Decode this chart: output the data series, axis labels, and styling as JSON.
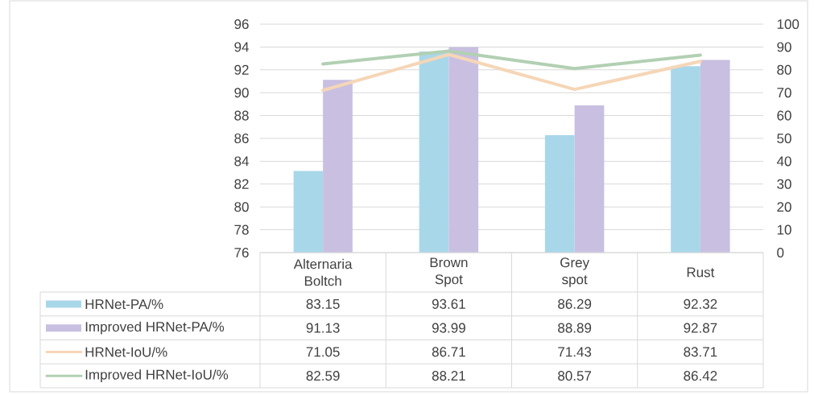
{
  "chart_data": {
    "type": "bar",
    "categories": [
      "Alternaria Boltch",
      "Brown Spot",
      "Grey spot",
      "Rust"
    ],
    "series": [
      {
        "name": "HRNet-PA/%",
        "color": "#a9d7ea",
        "values": [
          83.15,
          93.61,
          86.29,
          92.32
        ]
      },
      {
        "name": "Improved HRNet-PA/%",
        "color": "#c9bfe1",
        "values": [
          91.13,
          93.99,
          88.89,
          92.87
        ]
      },
      {
        "name": "HRNet-IoU/%",
        "type": "line",
        "axis": "y2",
        "color": "#f5d6b7",
        "values": [
          71.05,
          86.71,
          71.43,
          83.71
        ]
      },
      {
        "name": "Improved HRNet-IoU/%",
        "type": "line",
        "axis": "y2",
        "color": "#b2d0b3",
        "values": [
          82.59,
          88.21,
          80.57,
          86.42
        ]
      }
    ],
    "ylim": [
      76,
      96
    ],
    "yticks": [
      76,
      78,
      80,
      82,
      84,
      86,
      88,
      90,
      92,
      94,
      96
    ],
    "y2lim": [
      0,
      100
    ],
    "y2ticks": [
      0,
      10,
      20,
      30,
      40,
      50,
      60,
      70,
      80,
      90,
      100
    ],
    "grid": "y",
    "legend": "bottom",
    "data_labels": true
  }
}
